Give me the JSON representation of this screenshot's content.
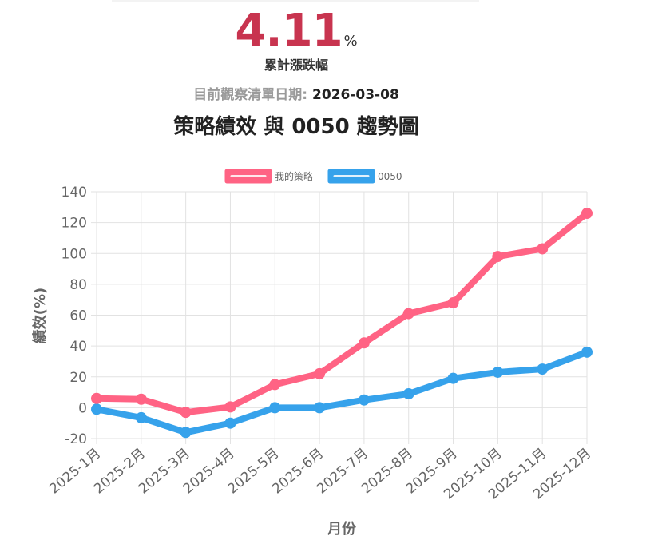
{
  "summary": {
    "value": "4.11",
    "unit": "%",
    "caption": "累計漲跌幅",
    "date_label": "目前觀察清單日期:",
    "date_value": "2026-03-08"
  },
  "colors": {
    "strategy": "#ff6384",
    "benchmark": "#36a2eb",
    "big_number": "#c8344f"
  },
  "chart_data": {
    "type": "line",
    "title": "策略績效 與 0050 趨勢圖",
    "xlabel": "月份",
    "ylabel": "績效(%)",
    "ylim": [
      -20,
      140
    ],
    "yticks": [
      -20,
      0,
      20,
      40,
      60,
      80,
      100,
      120,
      140
    ],
    "grid": true,
    "legend_position": "top",
    "categories": [
      "2025-1月",
      "2025-2月",
      "2025-3月",
      "2025-4月",
      "2025-5月",
      "2025-6月",
      "2025-7月",
      "2025-8月",
      "2025-9月",
      "2025-10月",
      "2025-11月",
      "2025-12月"
    ],
    "series": [
      {
        "name": "我的策略",
        "color": "#ff6384",
        "values": [
          6,
          5.5,
          -3,
          0.5,
          15,
          22,
          42,
          61,
          68,
          98,
          103,
          126
        ]
      },
      {
        "name": "0050",
        "color": "#36a2eb",
        "values": [
          -1,
          -6.5,
          -16,
          -10,
          0,
          0,
          5,
          9,
          19,
          23,
          25,
          36
        ]
      }
    ]
  }
}
